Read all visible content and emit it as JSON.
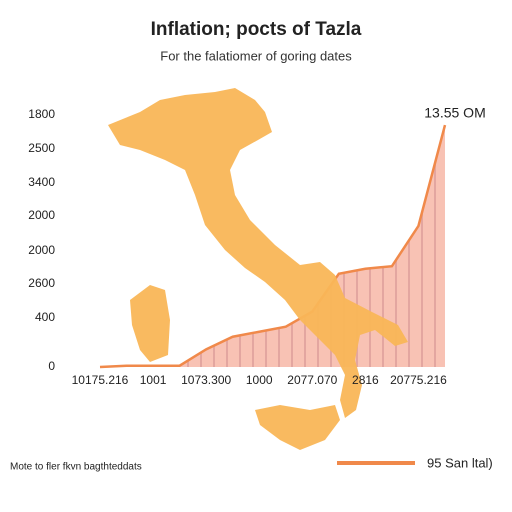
{
  "chart_data": {
    "type": "area",
    "title": "Inflation; pocts of Tazla",
    "subtitle": "For the falatiomer of goring dates",
    "y_axis_labels": [
      "1800",
      "2500",
      "3400",
      "2000",
      "2000",
      "2600",
      "400",
      "0"
    ],
    "categories": [
      "10175.216",
      null,
      "1001",
      null,
      "1073.300",
      null,
      "1000",
      null,
      "2077.070",
      null,
      "2816",
      null,
      "20775.216",
      null
    ],
    "values": [
      0,
      0.5,
      0.5,
      0.5,
      7,
      12,
      14,
      16,
      22,
      37,
      39,
      40,
      56,
      96
    ],
    "ylim": [
      0,
      100
    ],
    "color": "#f0894a",
    "fill": "#f8c2b4",
    "annotation": "13.55 OM",
    "footnote": "Mote to fler fkvn bagthteddats",
    "legend_label": "95 San ltal)"
  }
}
